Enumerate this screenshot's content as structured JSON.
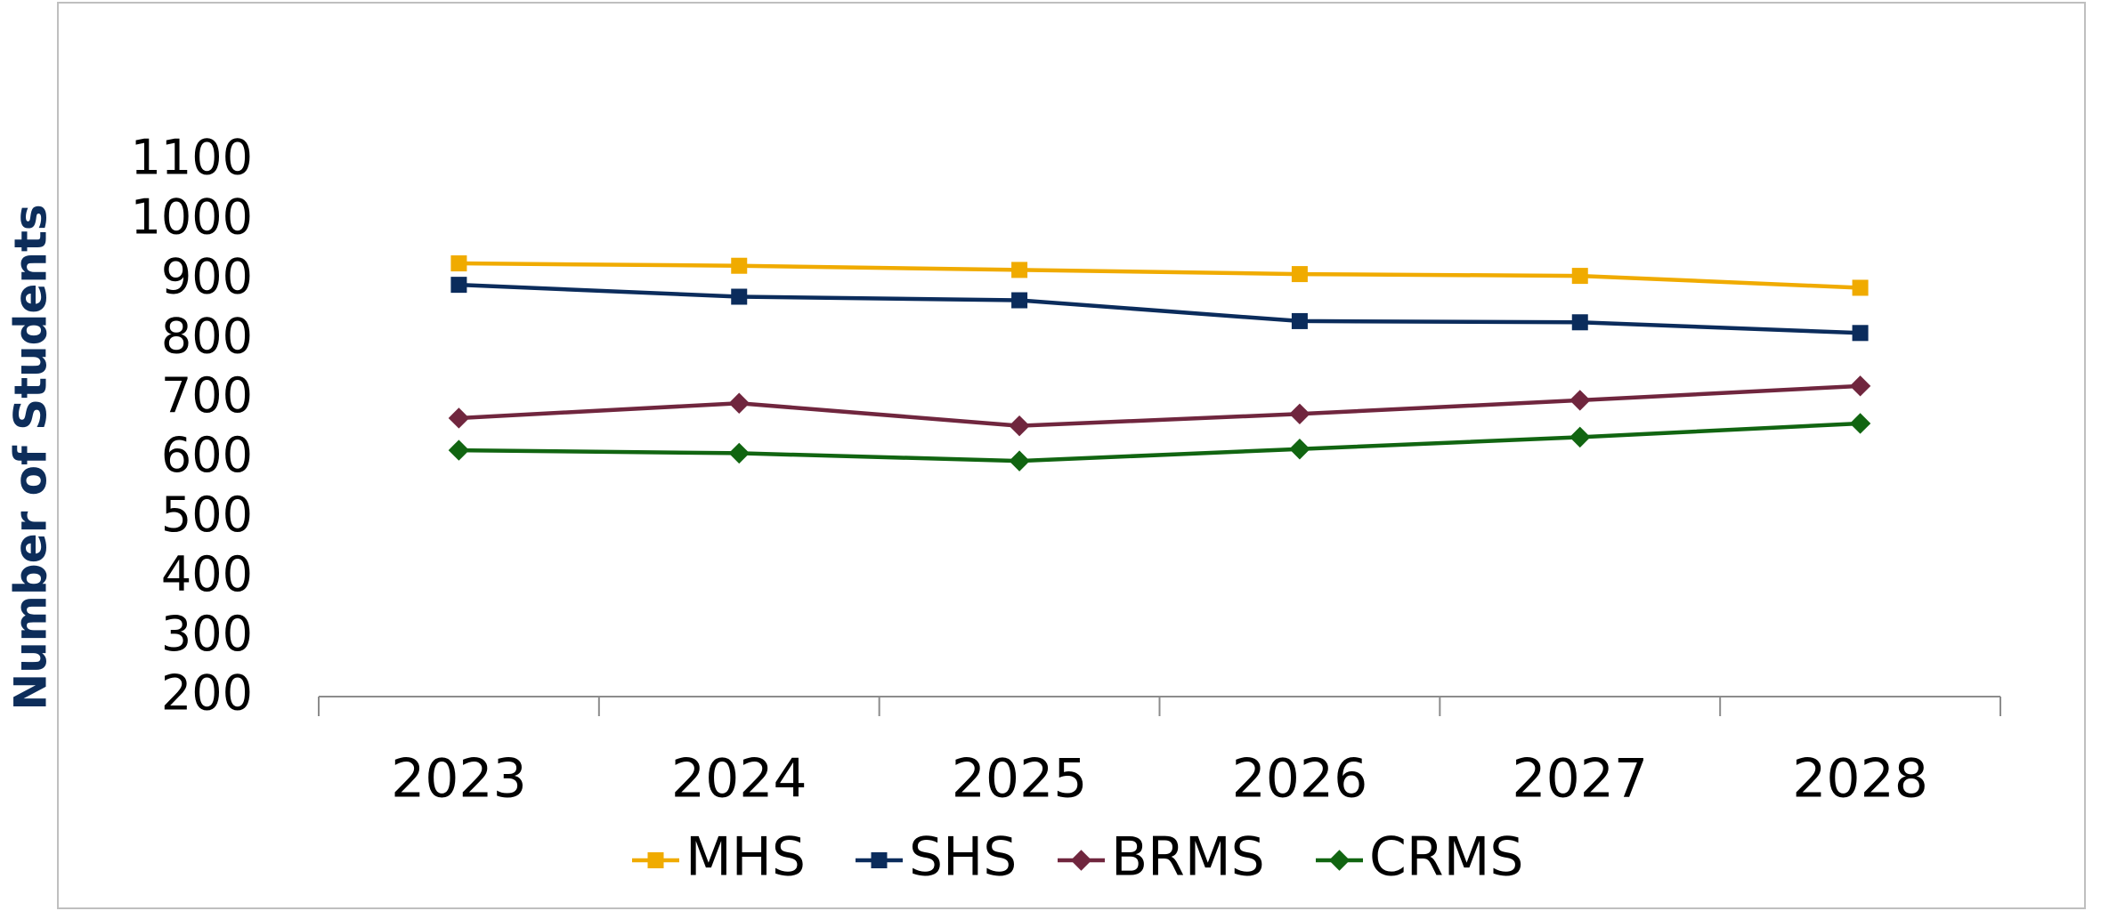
{
  "chart_data": {
    "type": "line",
    "y_label": "Number of Students",
    "categories": [
      "2023",
      "2024",
      "2025",
      "2026",
      "2027",
      "2028"
    ],
    "series": [
      {
        "name": "MHS",
        "color": "#f0ab00",
        "marker": "square",
        "values": [
          928,
          924,
          917,
          910,
          907,
          887
        ]
      },
      {
        "name": "SHS",
        "color": "#0b2c5c",
        "marker": "square",
        "values": [
          892,
          872,
          866,
          831,
          829,
          811
        ]
      },
      {
        "name": "BRMS",
        "color": "#70263e",
        "marker": "diamond",
        "values": [
          668,
          693,
          655,
          675,
          698,
          722
        ]
      },
      {
        "name": "CRMS",
        "color": "#116511",
        "marker": "diamond",
        "values": [
          614,
          609,
          596,
          616,
          636,
          659
        ]
      }
    ],
    "ylim": [
      200,
      1100
    ],
    "yticks": [
      200,
      300,
      400,
      500,
      600,
      700,
      800,
      900,
      1000,
      1100
    ],
    "legend": "bottom"
  }
}
